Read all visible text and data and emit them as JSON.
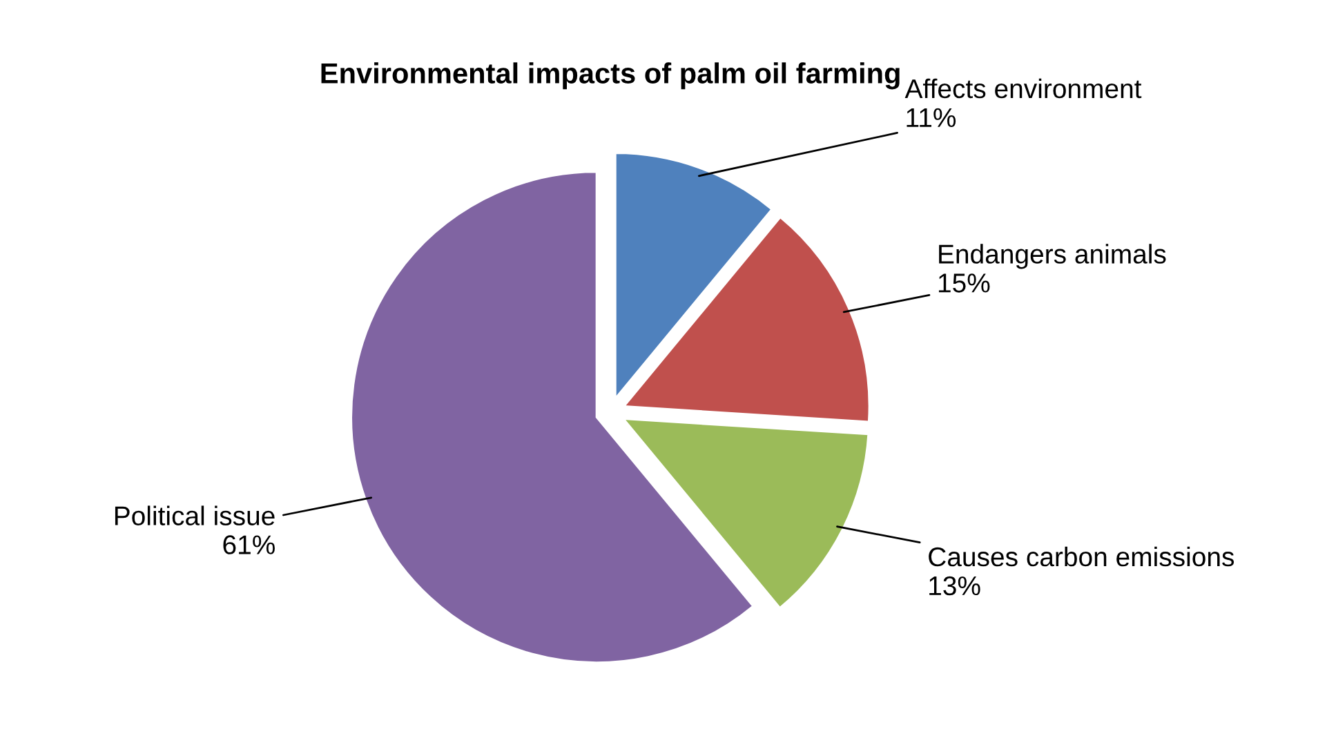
{
  "chart_data": {
    "type": "pie",
    "title": "Environmental impacts of palm oil farming",
    "categories": [
      "Affects environment",
      "Endangers animals",
      "Causes carbon emissions",
      "Political issue"
    ],
    "values": [
      11,
      15,
      13,
      61
    ],
    "value_labels": [
      "11%",
      "15%",
      "13%",
      "61%"
    ],
    "colors": [
      "#4f81bd",
      "#c0504d",
      "#9bbb59",
      "#8064a2"
    ],
    "legend": false
  }
}
